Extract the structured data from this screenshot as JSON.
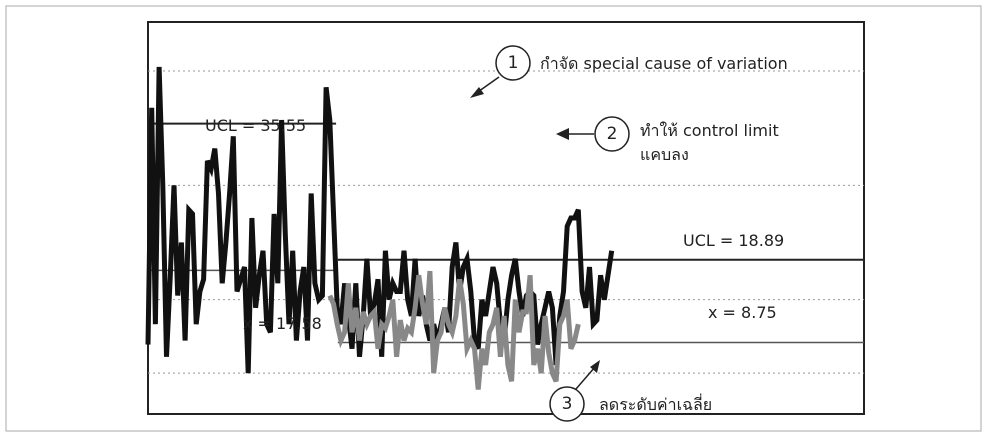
{
  "chart_data": {
    "type": "line",
    "title": "",
    "xlabel": "",
    "ylabel": "",
    "ylim": [
      0,
      48
    ],
    "grid": "dotted horizontal",
    "series": [
      {
        "color": "#111111",
        "values": [
          8.5,
          37.5,
          11,
          42.5,
          28,
          7,
          17,
          28,
          14.5,
          21,
          9,
          25,
          24.5,
          11,
          15,
          16.5,
          31,
          30,
          32.5,
          27,
          16,
          21,
          27,
          34,
          15,
          16.5,
          18,
          5,
          24,
          13,
          17,
          20,
          11,
          10,
          24.5,
          16,
          36,
          22,
          11,
          20,
          9,
          15,
          18,
          9,
          27,
          16,
          14,
          14.5,
          40,
          36,
          24.5,
          13,
          11,
          16,
          12,
          8,
          16,
          7,
          12,
          19,
          12,
          13.5,
          16.5,
          7,
          20,
          14,
          16,
          15,
          15,
          20,
          14,
          12,
          19,
          12,
          14.5,
          11,
          9,
          11,
          9,
          11,
          13,
          10,
          18,
          21,
          15,
          18,
          19,
          15,
          9,
          8,
          14,
          12,
          15,
          18,
          16,
          11,
          9,
          14,
          17,
          19,
          15,
          12,
          14.5,
          15,
          14.5,
          8.5,
          11,
          13,
          15,
          13,
          6,
          12,
          15,
          23,
          24,
          24,
          25,
          15,
          13,
          18,
          11,
          11.5,
          17,
          14,
          17,
          20
        ],
        "break_index": 48
      },
      {
        "color": "#888888",
        "values": [
          14.5,
          13.5,
          11,
          9,
          10,
          16,
          10,
          13,
          9,
          12.5,
          11,
          12,
          12.5,
          8,
          11,
          10.5,
          12,
          14,
          7,
          11.5,
          9,
          10.5,
          10,
          13,
          17,
          13.5,
          11,
          17.5,
          5,
          9,
          10,
          13,
          11,
          10,
          12,
          16.5,
          13.5,
          8,
          9,
          8,
          3,
          8,
          6,
          10,
          11,
          13,
          7,
          12,
          6,
          4,
          14,
          10,
          12.5,
          12.5,
          17,
          6,
          8,
          5,
          12,
          7.5,
          5,
          4,
          11,
          12,
          14,
          8,
          9,
          11
        ],
        "start_index": 49
      }
    ],
    "reference_lines": [
      {
        "label": "UCL = 35.55",
        "value": 35.55,
        "segment": "left"
      },
      {
        "label": "x = 17.58",
        "value": 17.58,
        "segment": "left"
      },
      {
        "label": "UCL = 18.89",
        "value": 18.89,
        "segment": "right"
      },
      {
        "label": "x = 8.75",
        "value": 8.75,
        "segment": "right"
      }
    ],
    "annotations": [
      {
        "number": "1",
        "text": "กำจัด special cause of variation"
      },
      {
        "number": "2",
        "text_line1": "ทำให้ control limit",
        "text_line2": "แคบลง"
      },
      {
        "number": "3",
        "text": "ลดระดับค่าเฉลี่ย"
      }
    ]
  }
}
